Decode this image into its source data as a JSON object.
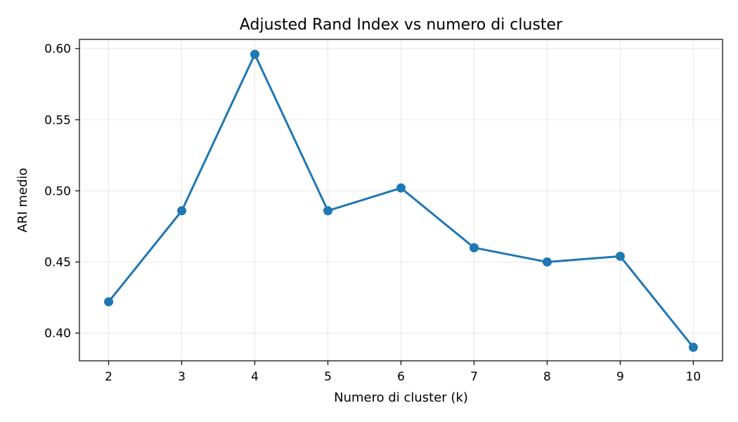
{
  "chart_data": {
    "type": "line",
    "title": "Adjusted Rand Index vs numero di cluster",
    "xlabel": "Numero di cluster (k)",
    "ylabel": "ARI medio",
    "x": [
      2,
      3,
      4,
      5,
      6,
      7,
      8,
      9,
      10
    ],
    "series": [
      {
        "values": [
          0.422,
          0.486,
          0.596,
          0.486,
          0.502,
          0.46,
          0.45,
          0.454,
          0.39
        ],
        "color": "#1f77b4",
        "marker": "circle"
      }
    ],
    "xticks": [
      "2",
      "3",
      "4",
      "5",
      "6",
      "7",
      "8",
      "9",
      "10"
    ],
    "yticks": [
      "0.40",
      "0.45",
      "0.50",
      "0.55",
      "0.60"
    ],
    "xlim": [
      1.6,
      10.4
    ],
    "ylim": [
      0.3805,
      0.6065
    ],
    "grid": true,
    "legend": "none"
  }
}
